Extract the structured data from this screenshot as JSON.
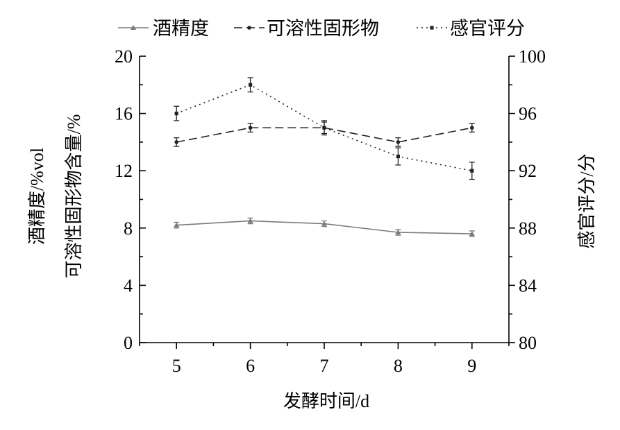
{
  "chart_data": {
    "type": "line",
    "x": [
      5,
      6,
      7,
      8,
      9
    ],
    "xlabel": "发酵时间/d",
    "ylabel_left": [
      "酒精度/%vol",
      "可溶性固形物含量/%"
    ],
    "ylabel_right": "感官评分/分",
    "xlim": [
      4.5,
      9.5
    ],
    "ylim_left": [
      0,
      20
    ],
    "ylim_right": [
      80,
      100
    ],
    "x_ticks": [
      "5",
      "6",
      "7",
      "8",
      "9"
    ],
    "y_left_ticks": [
      "0",
      "4",
      "8",
      "12",
      "16",
      "20"
    ],
    "y_right_ticks": [
      "80",
      "84",
      "88",
      "92",
      "96",
      "100"
    ],
    "grid": false,
    "legend_position": "top",
    "series": [
      {
        "name": "酒精度",
        "axis": "left",
        "values": [
          8.2,
          8.5,
          8.3,
          7.7,
          7.6
        ],
        "errors": [
          0.2,
          0.2,
          0.2,
          0.2,
          0.2
        ],
        "style": "solid",
        "marker": "triangle",
        "color": "#7a7a7a"
      },
      {
        "name": "可溶性固形物",
        "axis": "left",
        "values": [
          14.0,
          15.0,
          15.0,
          14.0,
          15.0
        ],
        "errors": [
          0.3,
          0.3,
          0.4,
          0.3,
          0.3
        ],
        "style": "dashed",
        "marker": "circle",
        "color": "#222222"
      },
      {
        "name": "感官评分",
        "axis": "right",
        "values": [
          96,
          98,
          95,
          93,
          92
        ],
        "errors": [
          0.5,
          0.5,
          0.5,
          0.6,
          0.6
        ],
        "style": "dotted",
        "marker": "square",
        "color": "#222222"
      }
    ]
  }
}
